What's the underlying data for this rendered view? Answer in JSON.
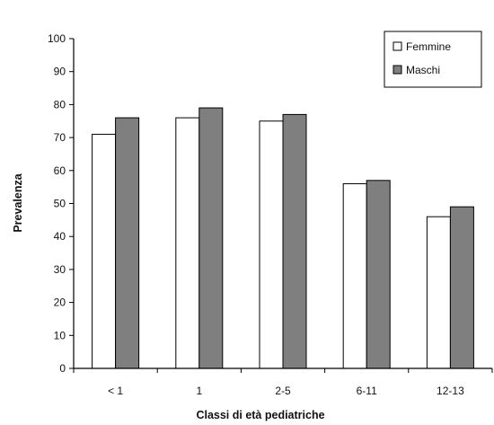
{
  "chart_data": {
    "type": "bar",
    "xlabel": "Classi di età pediatriche",
    "ylabel": "Prevalenza",
    "categories": [
      "< 1",
      "1",
      "2-5",
      "6-11",
      "12-13"
    ],
    "series": [
      {
        "name": "Femmine",
        "values": [
          71,
          76,
          75,
          56,
          46
        ],
        "color": "#ffffff"
      },
      {
        "name": "Maschi",
        "values": [
          76,
          79,
          77,
          57,
          49
        ],
        "color": "#7f7f7f"
      }
    ],
    "ylim": [
      0,
      100
    ],
    "yticks": [
      0,
      10,
      20,
      30,
      40,
      50,
      60,
      70,
      80,
      90,
      100
    ],
    "grid": false,
    "legend_position": "top-right"
  }
}
